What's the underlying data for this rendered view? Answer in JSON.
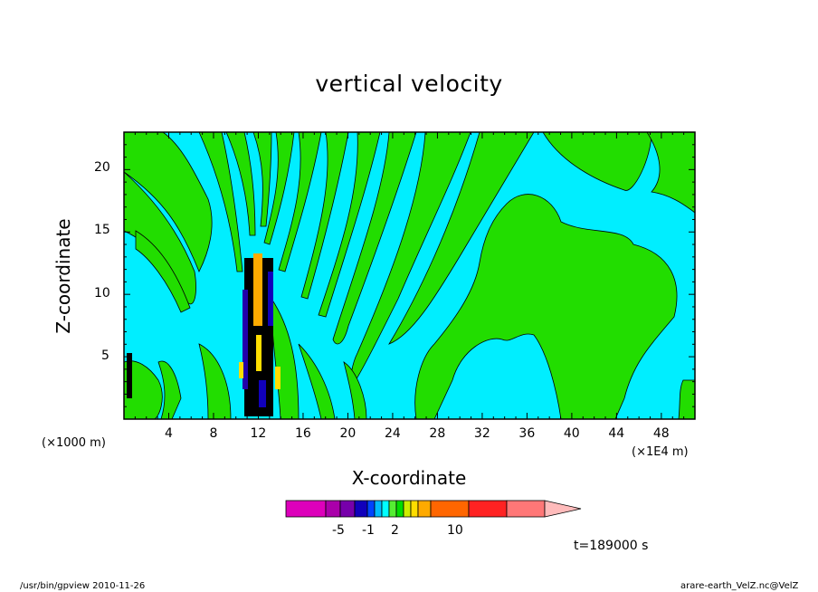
{
  "chart_data": {
    "type": "heatmap",
    "title": "vertical velocity",
    "xlabel": "X-coordinate",
    "ylabel": "Z-coordinate",
    "x_unit_left": "(×1000 m)",
    "x_unit_right": "(×1E4 m)",
    "x_ticks": [
      "4",
      "8",
      "12",
      "16",
      "20",
      "24",
      "28",
      "32",
      "36",
      "40",
      "44",
      "48"
    ],
    "y_ticks": [
      "5",
      "10",
      "15",
      "20"
    ],
    "xlim": [
      0,
      51
    ],
    "ylim": [
      0,
      23
    ],
    "colorbar": {
      "labels": [
        "-5",
        "-1",
        "2",
        "10"
      ],
      "colors": [
        "#dd00bb",
        "#aa00aa",
        "#7700aa",
        "#1100bb",
        "#0044ff",
        "#00bbff",
        "#00ffff",
        "#55ee33",
        "#00dd00",
        "#ccee00",
        "#ffdd00",
        "#ffaa00",
        "#ff6600",
        "#ff2222",
        "#ff7777",
        "#ffbbbb"
      ]
    },
    "field_colors": {
      "positive_weak": "#22dd00",
      "negative_weak": "#00eeff",
      "contour": "#000000"
    },
    "time_label": "t=189000 s"
  },
  "footer": {
    "left": "/usr/bin/gpview   2010-11-26",
    "right": "arare-earth_VelZ.nc@VelZ"
  }
}
